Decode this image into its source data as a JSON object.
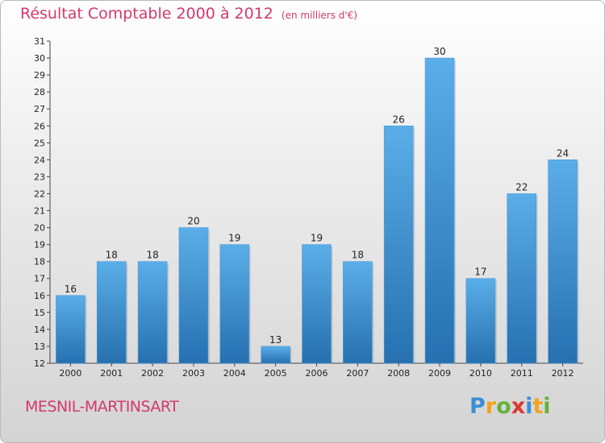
{
  "header": {
    "title": "Résultat Comptable 2000 à 2012",
    "subtitle": "(en milliers d'€)"
  },
  "footer": {
    "commune": "MESNIL-MARTINSART",
    "logo_letters": [
      "P",
      "r",
      "o",
      "x",
      "i",
      "t",
      "i"
    ],
    "logo_colors": [
      "#3a8fd6",
      "#f2a31b",
      "#63b33c",
      "#e0372e",
      "#3a8fd6",
      "#f2a31b",
      "#63b33c"
    ]
  },
  "colors": {
    "bar_light": "#5aaee8",
    "bar_dark": "#2670b0",
    "accent": "#d23a6a"
  },
  "chart_data": {
    "type": "bar",
    "title": "Résultat Comptable 2000 à 2012",
    "subtitle": "(en milliers d'€)",
    "categories": [
      "2000",
      "2001",
      "2002",
      "2003",
      "2004",
      "2005",
      "2006",
      "2007",
      "2008",
      "2009",
      "2010",
      "2011",
      "2012"
    ],
    "values": [
      16,
      18,
      18,
      20,
      19,
      13,
      19,
      18,
      26,
      30,
      17,
      22,
      24
    ],
    "ylim": [
      12,
      31
    ],
    "yticks": [
      12,
      13,
      14,
      15,
      16,
      17,
      18,
      19,
      20,
      21,
      22,
      23,
      24,
      25,
      26,
      27,
      28,
      29,
      30,
      31
    ],
    "grid": false,
    "data_labels": true
  }
}
